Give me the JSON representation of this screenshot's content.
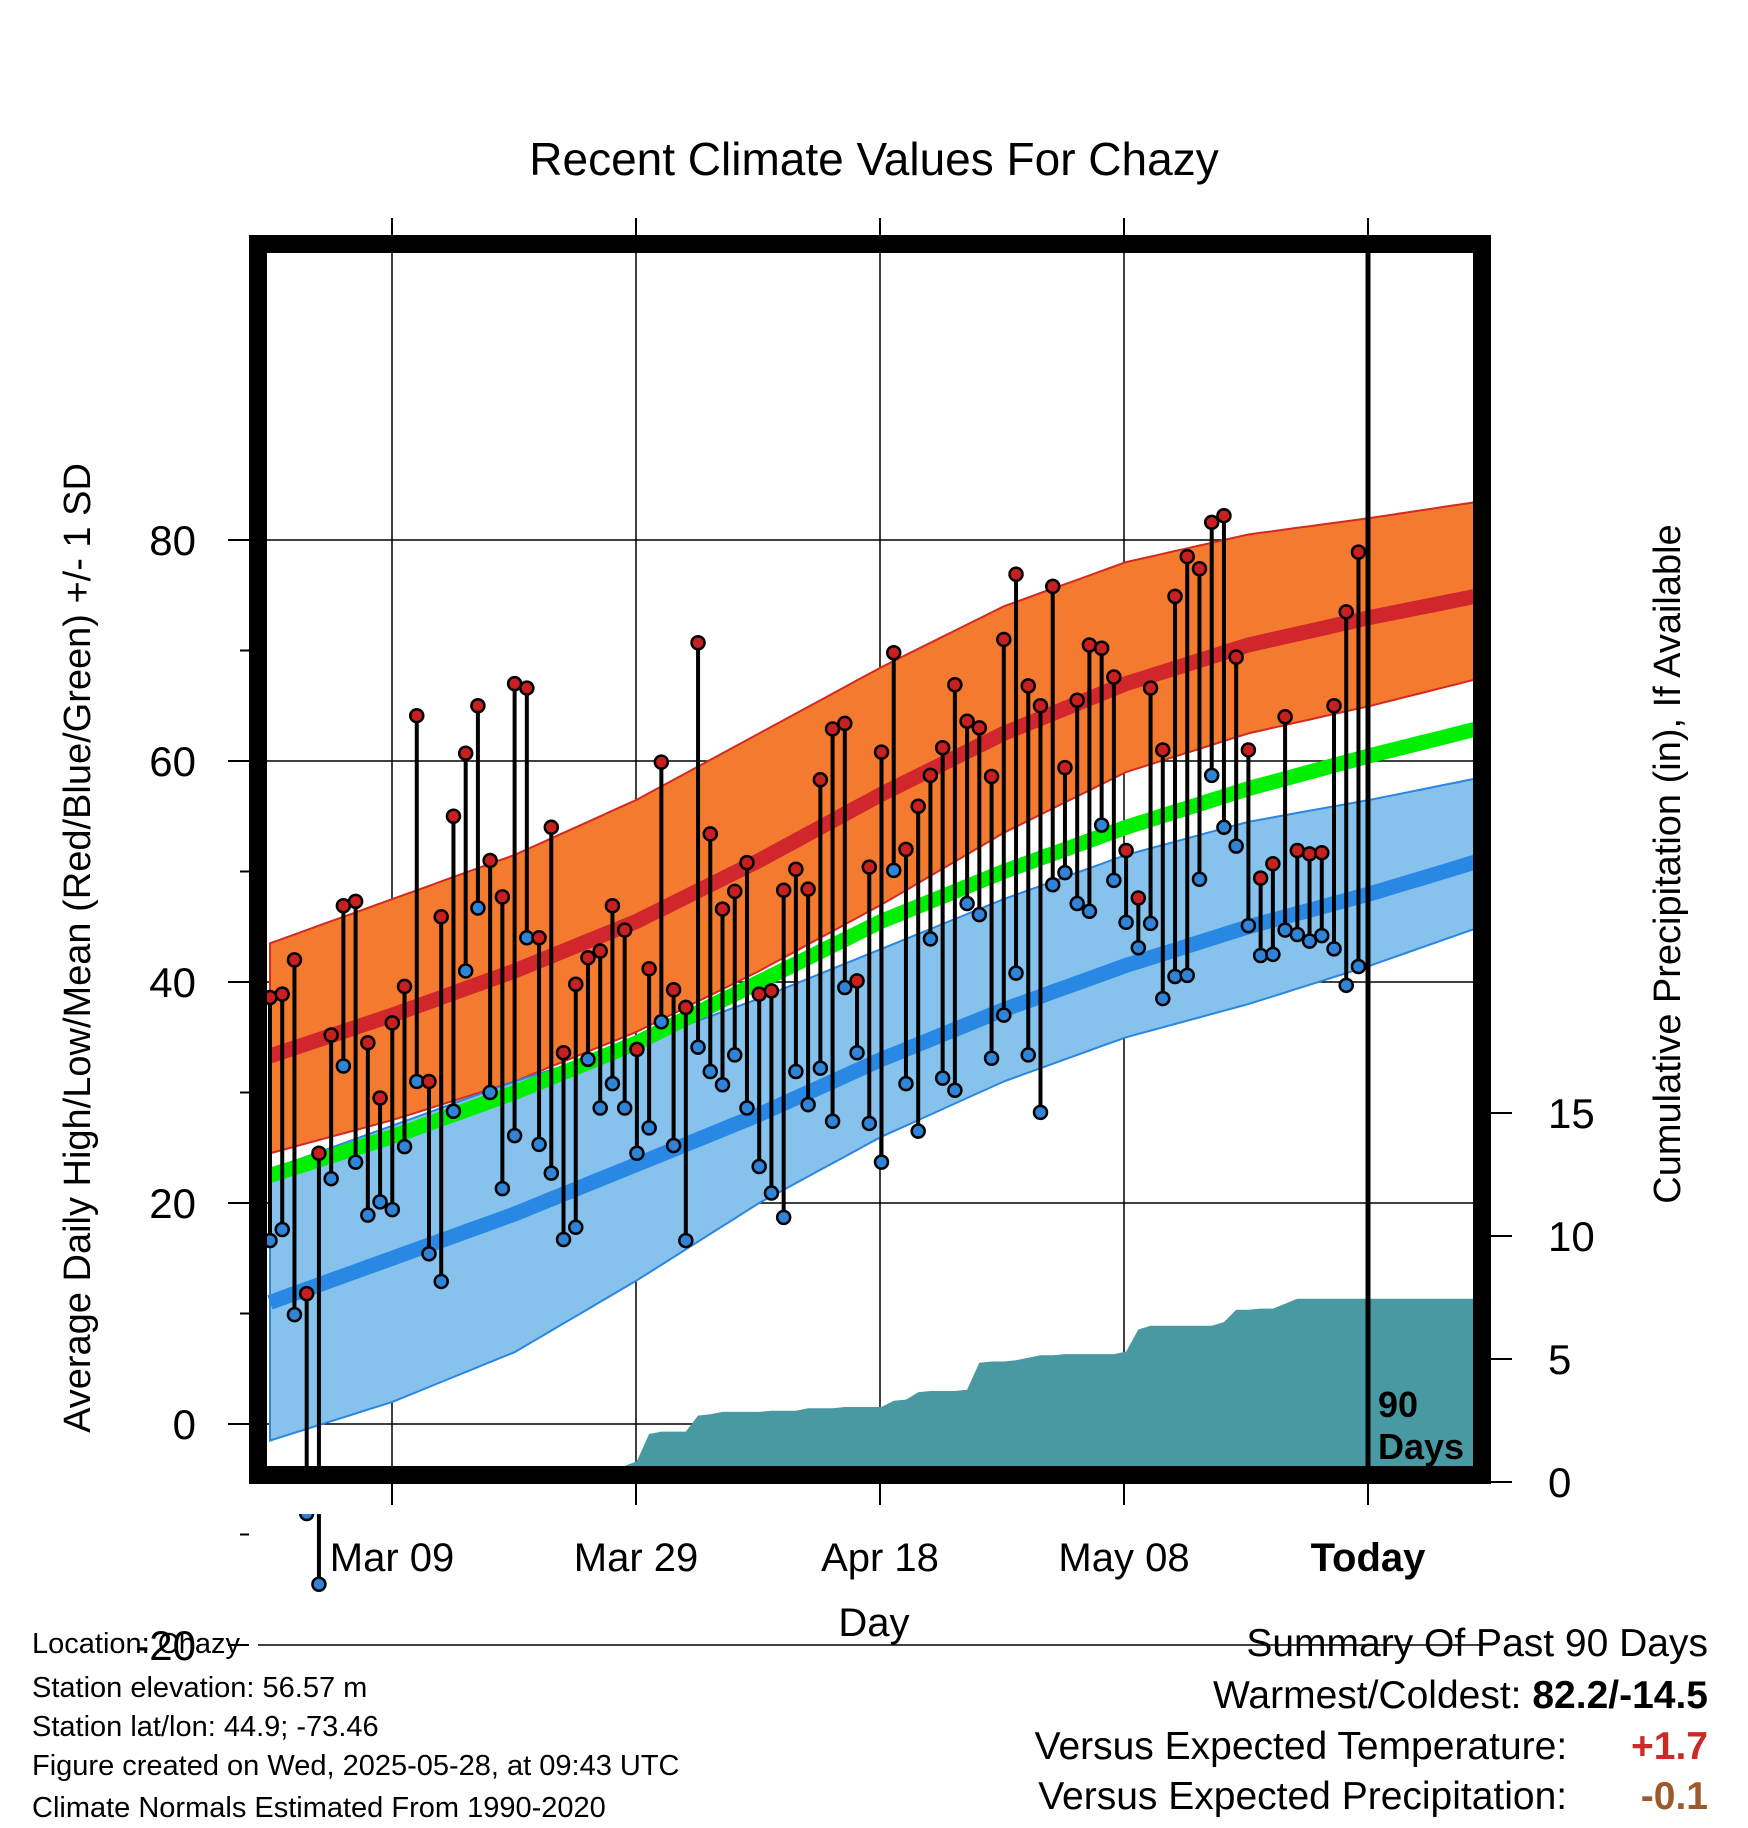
{
  "chart_data": {
    "type": "line",
    "title": "Recent Climate Values For Chazy",
    "xlabel": "Day",
    "ylabel": "Average Daily High/Low/Mean (Red/Blue/Green) +/- 1 SD",
    "y2label": "Cumulative Precipitation (in), If Available",
    "ylim": [
      -24,
      86
    ],
    "y2lim": [
      0,
      19.4
    ],
    "yticks": [
      "-20",
      "0",
      "20",
      "40",
      "60",
      "80"
    ],
    "y2ticks": [
      "0",
      "5",
      "10",
      "15"
    ],
    "xticks": [
      "Mar 09",
      "Mar 29",
      "Apr 18",
      "May 08",
      "Today"
    ],
    "grid": true,
    "today_marker_label": "90 Days",
    "colors": {
      "high_band": "#f47a30",
      "high_mean": "#d0262c",
      "low_band": "#86c2eb",
      "low_mean": "#2888e4",
      "mean_line": "#00ee00",
      "precip_fill": "#4999a2",
      "high_dot": "#c82020",
      "low_dot": "#2f84d8"
    },
    "normals": {
      "day_index": [
        0,
        10,
        20,
        30,
        40,
        50,
        60,
        70,
        80,
        90,
        99
      ],
      "high_mean": [
        33.3,
        37,
        41,
        45.5,
        51,
        57,
        62.5,
        67,
        70.5,
        73,
        75
      ],
      "high_sd_upper": [
        43.5,
        47.5,
        51.5,
        56.5,
        62.5,
        68.5,
        74,
        78,
        80.5,
        82,
        83.5
      ],
      "high_sd_lower": [
        24.5,
        27.5,
        31,
        35.5,
        41,
        47,
        53.5,
        59,
        62.5,
        65,
        67.5
      ],
      "low_mean": [
        11,
        15,
        19,
        23.5,
        28,
        33,
        37.5,
        41.5,
        45,
        48,
        51
      ],
      "low_sd_upper": [
        23,
        27,
        31,
        34.5,
        38.5,
        43,
        47.5,
        51.5,
        54.5,
        56.5,
        58.5
      ],
      "low_sd_lower": [
        -1.5,
        2,
        6.5,
        13,
        20,
        26,
        31,
        35,
        38,
        41.5,
        45
      ],
      "mean": [
        22.5,
        26,
        30,
        34.5,
        40,
        45.5,
        50,
        54,
        57.5,
        60.5,
        63
      ]
    },
    "series": [
      {
        "name": "Daily High",
        "values": [
          38.6,
          38.9,
          42,
          11.8,
          24.5,
          35.2,
          46.9,
          47.3,
          34.5,
          29.5,
          36.3,
          39.6,
          64.1,
          31,
          45.9,
          55,
          60.7,
          65,
          51,
          47.7,
          67,
          66.6,
          44,
          54,
          33.6,
          39.8,
          42.2,
          42.8,
          46.9,
          44.7,
          33.9,
          41.2,
          59.9,
          39.3,
          37.7,
          70.7,
          53.4,
          46.6,
          48.2,
          50.8,
          38.9,
          39.2,
          48.3,
          50.2,
          48.4,
          58.3,
          62.9,
          63.4,
          40.1,
          50.4,
          60.8,
          69.8,
          52,
          55.9,
          58.7,
          61.2,
          66.9,
          63.6,
          63,
          58.6,
          71,
          76.9,
          66.8,
          65,
          75.8,
          59.4,
          65.5,
          70.5,
          70.2,
          67.6,
          51.9,
          47.6,
          66.6,
          61,
          74.9,
          78.5,
          77.4,
          81.6,
          82.2,
          69.4,
          61,
          49.4,
          50.7,
          64,
          51.9,
          51.6,
          51.7,
          65,
          73.5,
          78.9
        ]
      },
      {
        "name": "Daily Low",
        "values": [
          16.6,
          17.6,
          9.9,
          -8.1,
          -14.5,
          22.2,
          32.4,
          23.7,
          18.9,
          20.1,
          19.4,
          25.1,
          31,
          15.4,
          12.9,
          28.3,
          41,
          46.7,
          30,
          21.3,
          26.1,
          44,
          25.3,
          22.7,
          16.7,
          17.8,
          33,
          28.6,
          30.8,
          28.6,
          24.5,
          26.8,
          36.4,
          25.2,
          16.6,
          34.1,
          31.9,
          30.7,
          33.4,
          28.6,
          23.3,
          20.9,
          18.7,
          31.9,
          28.9,
          32.2,
          27.4,
          39.5,
          33.6,
          27.2,
          23.7,
          50.1,
          30.8,
          26.5,
          43.9,
          31.3,
          30.2,
          47.1,
          46.1,
          33.1,
          37,
          40.8,
          33.4,
          28.2,
          48.8,
          49.9,
          47.1,
          46.4,
          54.2,
          49.2,
          45.4,
          43.1,
          45.3,
          38.5,
          40.5,
          40.6,
          49.3,
          58.7,
          54,
          52.3,
          45.1,
          42.4,
          42.5,
          44.7,
          44.3,
          43.7,
          44.2,
          43,
          39.7,
          41.4
        ]
      },
      {
        "name": "Cumulative Precipitation",
        "values": [
          0,
          0,
          0,
          0,
          0,
          0,
          0.05,
          0.08,
          0.1,
          0.2,
          0.2,
          0.3,
          0.3,
          0.3,
          0.3,
          0.3,
          0.3,
          0.45,
          0.45,
          0.45,
          0.45,
          0.55,
          0.55,
          0.55,
          0.55,
          0.55,
          0.6,
          0.6,
          0.65,
          0.65,
          0.85,
          1.95,
          2.05,
          2.05,
          2.05,
          2.7,
          2.75,
          2.85,
          2.85,
          2.85,
          2.85,
          2.9,
          2.9,
          2.9,
          3.0,
          3.0,
          3.0,
          3.05,
          3.05,
          3.05,
          3.05,
          3.3,
          3.35,
          3.65,
          3.7,
          3.7,
          3.7,
          3.75,
          4.85,
          4.9,
          4.9,
          4.95,
          5.05,
          5.15,
          5.15,
          5.2,
          5.2,
          5.2,
          5.2,
          5.2,
          5.3,
          6.2,
          6.35,
          6.35,
          6.35,
          6.35,
          6.35,
          6.35,
          6.5,
          7.0,
          7.0,
          7.05,
          7.05,
          7.25,
          7.45,
          7.45,
          7.45,
          7.45,
          7.45,
          7.45
        ]
      }
    ]
  },
  "info": {
    "location": "Location: Chazy",
    "elevation": "Station elevation: 56.57 m",
    "latlon": "Station lat/lon: 44.9; -73.46",
    "created": "Figure created on Wed, 2025-05-28, at 09:43 UTC",
    "normals_source": "Climate Normals Estimated From 1990-2020"
  },
  "summary": {
    "title": "Summary Of Past 90 Days",
    "warmest_label": "Warmest/Coldest:",
    "warmest_value": "82.2/-14.5",
    "temp_label": "Versus Expected Temperature:",
    "temp_value": "+1.7",
    "temp_color": "#cc2a26",
    "precip_label": "Versus Expected Precipitation:",
    "precip_value": "-0.1",
    "precip_color": "#9b5a2c"
  }
}
